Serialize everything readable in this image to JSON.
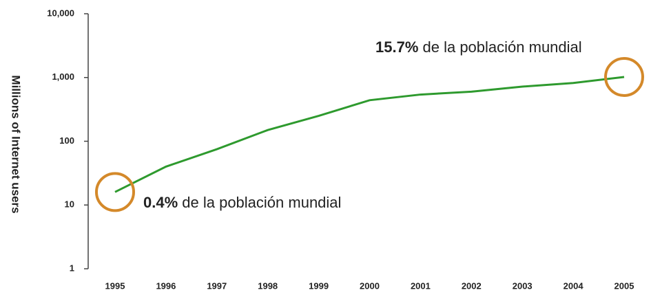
{
  "chart_data": {
    "type": "line",
    "y_label": "Millions of Internet users",
    "categories": [
      "1995",
      "1996",
      "1997",
      "1998",
      "1999",
      "2000",
      "2001",
      "2002",
      "2003",
      "2004",
      "2005"
    ],
    "series": [
      {
        "name": "Internet users",
        "color": "#2e9a2e",
        "values": [
          16,
          40,
          75,
          150,
          250,
          440,
          540,
          600,
          720,
          820,
          1020
        ]
      }
    ],
    "ylim": [
      1,
      10000
    ],
    "log_scale": true,
    "yticks": [
      {
        "value": 10000,
        "label": "10,000"
      },
      {
        "value": 1000,
        "label": "1,000"
      },
      100,
      10,
      1
    ],
    "highlight_color": "#d4892a",
    "annotations": [
      {
        "bold": "15.7%",
        "text": " de la población mundial"
      },
      {
        "bold": "0.4%",
        "text": " de la población mundial"
      }
    ]
  }
}
